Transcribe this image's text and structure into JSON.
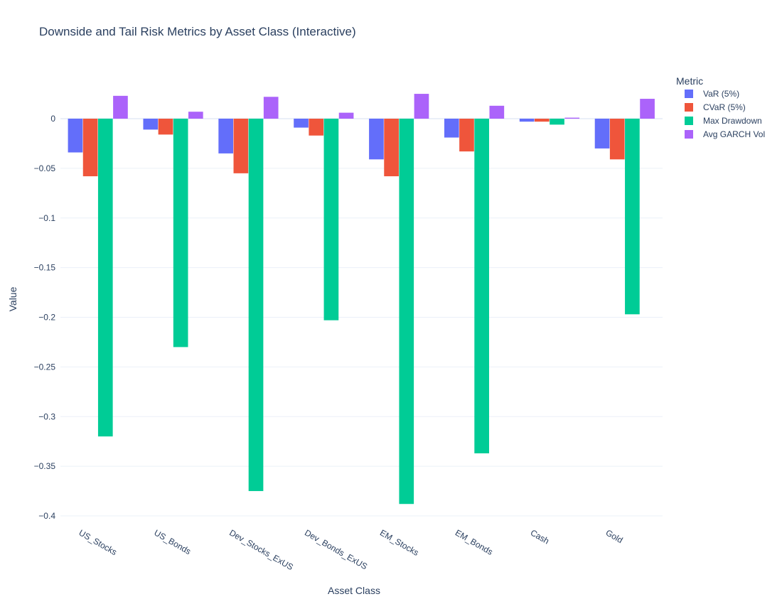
{
  "chart_data": {
    "type": "bar",
    "title": "Downside and Tail Risk Metrics by Asset Class (Interactive)",
    "xlabel": "Asset Class",
    "ylabel": "Value",
    "legend_title": "Metric",
    "legend_position": "top-right",
    "grid": true,
    "ylim": [
      -0.4,
      0.02
    ],
    "yticks": [
      0,
      -0.05,
      -0.1,
      -0.15,
      -0.2,
      -0.25,
      -0.3,
      -0.35,
      -0.4
    ],
    "ytick_labels": [
      "0",
      "−0.05",
      "−0.1",
      "−0.15",
      "−0.2",
      "−0.25",
      "−0.3",
      "−0.35",
      "−0.4"
    ],
    "categories": [
      "US_Stocks",
      "US_Bonds",
      "Dev_Stocks_ExUS",
      "Dev_Bonds_ExUS",
      "EM_Stocks",
      "EM_Bonds",
      "Cash",
      "Gold"
    ],
    "series": [
      {
        "name": "VaR (5%)",
        "color": "#636efa",
        "values": [
          -0.034,
          -0.011,
          -0.035,
          -0.009,
          -0.041,
          -0.019,
          -0.003,
          -0.03
        ]
      },
      {
        "name": "CVaR (5%)",
        "color": "#ef553b",
        "values": [
          -0.058,
          -0.016,
          -0.055,
          -0.017,
          -0.058,
          -0.033,
          -0.003,
          -0.041
        ]
      },
      {
        "name": "Max Drawdown",
        "color": "#00cc96",
        "values": [
          -0.32,
          -0.23,
          -0.375,
          -0.203,
          -0.388,
          -0.337,
          -0.006,
          -0.197
        ]
      },
      {
        "name": "Avg GARCH Vol",
        "color": "#ab63fa",
        "values": [
          0.023,
          0.007,
          0.022,
          0.006,
          0.025,
          0.013,
          0.001,
          0.02
        ]
      }
    ]
  }
}
